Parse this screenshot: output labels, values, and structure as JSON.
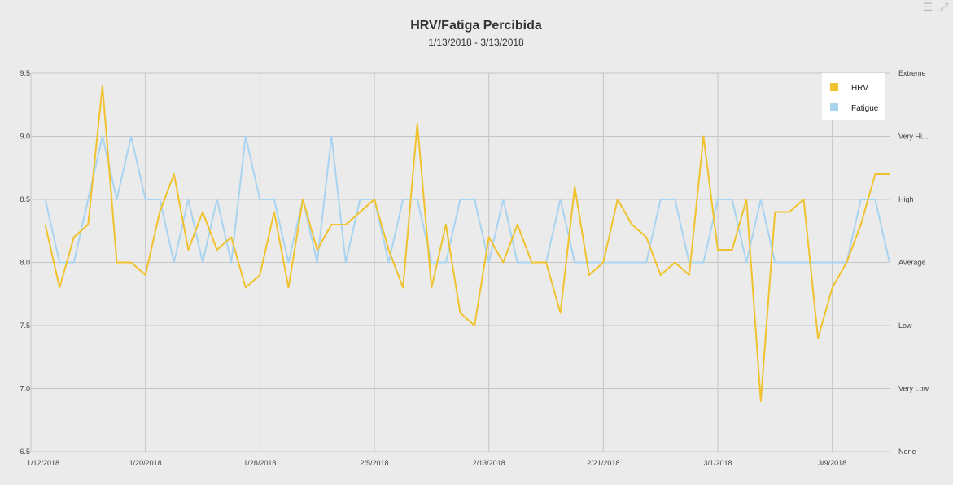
{
  "toolbar": {
    "menu_icon": "hamburger-menu-icon",
    "collapse_icon": "collapse-arrows-icon"
  },
  "chart_data": {
    "type": "line",
    "title": "HRV/Fatiga Percibida",
    "subtitle": "1/13/2018 - 3/13/2018",
    "x": [
      "1/12/2018",
      "1/13/2018",
      "1/14/2018",
      "1/15/2018",
      "1/16/2018",
      "1/17/2018",
      "1/18/2018",
      "1/19/2018",
      "1/20/2018",
      "1/21/2018",
      "1/22/2018",
      "1/23/2018",
      "1/24/2018",
      "1/25/2018",
      "1/26/2018",
      "1/27/2018",
      "1/28/2018",
      "1/29/2018",
      "1/30/2018",
      "1/31/2018",
      "2/1/2018",
      "2/2/2018",
      "2/3/2018",
      "2/4/2018",
      "2/5/2018",
      "2/6/2018",
      "2/7/2018",
      "2/8/2018",
      "2/9/2018",
      "2/10/2018",
      "2/11/2018",
      "2/12/2018",
      "2/13/2018",
      "2/14/2018",
      "2/15/2018",
      "2/16/2018",
      "2/17/2018",
      "2/18/2018",
      "2/19/2018",
      "2/20/2018",
      "2/21/2018",
      "2/22/2018",
      "2/23/2018",
      "2/24/2018",
      "2/25/2018",
      "2/26/2018",
      "2/27/2018",
      "2/28/2018",
      "3/1/2018",
      "3/2/2018",
      "3/3/2018",
      "3/4/2018",
      "3/5/2018",
      "3/6/2018",
      "3/7/2018",
      "3/8/2018",
      "3/9/2018",
      "3/10/2018",
      "3/11/2018",
      "3/12/2018",
      "3/13/2018"
    ],
    "x_tick_labels": [
      "1/12/2018",
      "1/20/2018",
      "1/28/2018",
      "2/5/2018",
      "2/13/2018",
      "2/21/2018",
      "3/1/2018",
      "3/9/2018"
    ],
    "y_left": {
      "min": 6.5,
      "max": 9.5,
      "ticks": [
        "6.5",
        "7.0",
        "7.5",
        "8.0",
        "8.5",
        "9.0",
        "9.5"
      ]
    },
    "y_right": {
      "ticks": [
        "None",
        "Very Low",
        "Low",
        "Average",
        "High",
        "Very Hi...",
        "Extreme"
      ]
    },
    "grid": true,
    "legend": {
      "position": "top-right"
    },
    "series": [
      {
        "name": "HRV",
        "color": "#f0c22e",
        "values": [
          null,
          8.3,
          7.8,
          8.2,
          8.3,
          9.4,
          8.0,
          8.0,
          7.9,
          8.4,
          8.7,
          8.1,
          8.4,
          8.1,
          8.2,
          7.8,
          7.9,
          8.4,
          7.8,
          8.5,
          8.1,
          8.3,
          8.3,
          8.4,
          8.5,
          8.1,
          7.8,
          9.1,
          7.8,
          8.3,
          7.6,
          7.5,
          8.2,
          8.0,
          8.3,
          8.0,
          8.0,
          7.6,
          8.6,
          7.9,
          8.0,
          8.5,
          8.3,
          8.2,
          7.9,
          8.0,
          7.9,
          9.0,
          8.1,
          8.1,
          8.5,
          6.9,
          8.4,
          8.4,
          8.5,
          7.4,
          7.8,
          8.0,
          8.3,
          8.7,
          8.7
        ]
      },
      {
        "name": "Fatigue",
        "color": "#a9d4f0",
        "values": [
          null,
          8.5,
          8.0,
          8.0,
          8.5,
          9.0,
          8.5,
          9.0,
          8.5,
          8.5,
          8.0,
          8.5,
          8.0,
          8.5,
          8.0,
          9.0,
          8.5,
          8.5,
          8.0,
          8.5,
          8.0,
          9.0,
          8.0,
          8.5,
          8.5,
          8.0,
          8.5,
          8.5,
          8.0,
          8.0,
          8.5,
          8.5,
          8.0,
          8.5,
          8.0,
          8.0,
          8.0,
          8.5,
          8.0,
          8.0,
          8.0,
          8.0,
          8.0,
          8.0,
          8.5,
          8.5,
          8.0,
          8.0,
          8.5,
          8.5,
          8.0,
          8.5,
          8.0,
          8.0,
          8.0,
          8.0,
          8.0,
          8.0,
          8.5,
          8.5,
          8.0
        ]
      }
    ]
  }
}
